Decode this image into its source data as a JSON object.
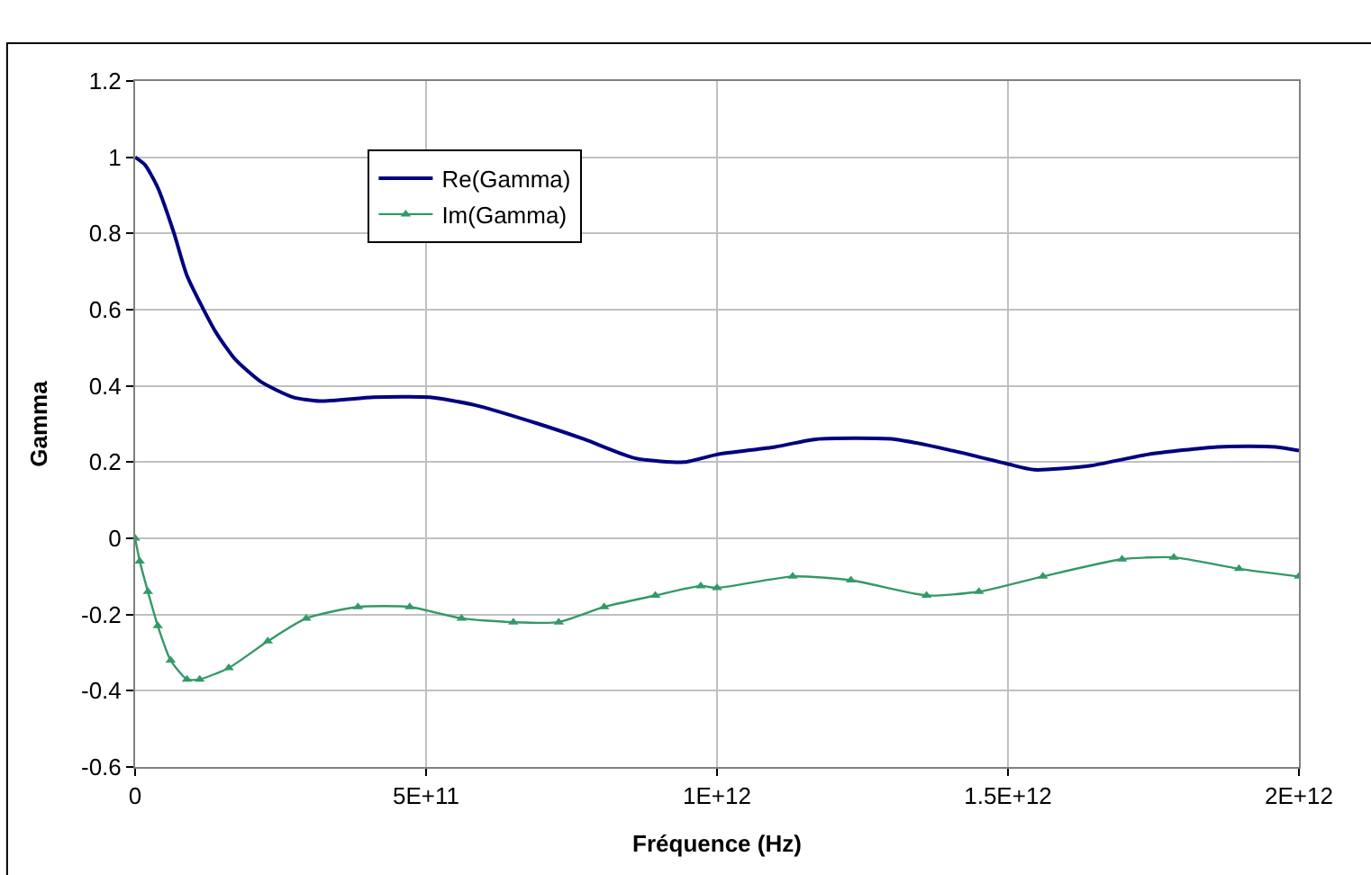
{
  "chart_data": {
    "type": "line",
    "xlabel": "Fréquence (Hz)",
    "ylabel": "Gamma",
    "xlim": [
      0,
      2000000000000.0
    ],
    "xticks": [
      {
        "value": 0,
        "label": "0"
      },
      {
        "value": 500000000000.0,
        "label": "5E+11"
      },
      {
        "value": 1000000000000.0,
        "label": "1E+12"
      },
      {
        "value": 1500000000000.0,
        "label": "1.5E+12"
      },
      {
        "value": 2000000000000.0,
        "label": "2E+12"
      }
    ],
    "ylim": [
      -0.6,
      1.2
    ],
    "yticks": [
      -0.6,
      -0.4,
      -0.2,
      0,
      0.2,
      0.4,
      0.6,
      0.8,
      1,
      1.2
    ],
    "grid": true,
    "legend": "top left",
    "series": [
      {
        "name": "Re(Gamma)",
        "color": "#000080",
        "marker": "none",
        "x": [
          0,
          17000000000.0,
          39000000000.0,
          67000000000.0,
          89000000000.0,
          139000000000.0,
          172000000000.0,
          217000000000.0,
          272000000000.0,
          317000000000.0,
          410000000000.0,
          506000000000.0,
          583000000000.0,
          694000000000.0,
          772000000000.0,
          860000000000.0,
          944000000000.0,
          1000000000000.0,
          1100000000000.0,
          1170000000000.0,
          1305000000000.0,
          1405000000000.0,
          1500000000000.0,
          1545000000000.0,
          1640000000000.0,
          1740000000000.0,
          1860000000000.0,
          1960000000000.0,
          2000000000000.0
        ],
        "values": [
          1.0,
          0.98,
          0.92,
          0.8,
          0.69,
          0.54,
          0.47,
          0.41,
          0.37,
          0.36,
          0.37,
          0.37,
          0.35,
          0.3,
          0.26,
          0.21,
          0.2,
          0.22,
          0.24,
          0.26,
          0.26,
          0.23,
          0.195,
          0.18,
          0.19,
          0.22,
          0.24,
          0.24,
          0.23
        ]
      },
      {
        "name": "Im(Gamma)",
        "color": "#339966",
        "marker": "triangle",
        "x": [
          0,
          8000000000.0,
          22000000000.0,
          39000000000.0,
          61000000000.0,
          89000000000.0,
          111000000000.0,
          161000000000.0,
          228000000000.0,
          294000000000.0,
          383000000000.0,
          472000000000.0,
          561000000000.0,
          650000000000.0,
          728000000000.0,
          806000000000.0,
          894000000000.0,
          972000000000.0,
          1000000000000.0,
          1130000000000.0,
          1230000000000.0,
          1360000000000.0,
          1450000000000.0,
          1560000000000.0,
          1696000000000.0,
          1785000000000.0,
          1897000000000.0,
          2000000000000.0
        ],
        "values": [
          0,
          -0.06,
          -0.14,
          -0.23,
          -0.32,
          -0.37,
          -0.37,
          -0.34,
          -0.27,
          -0.21,
          -0.18,
          -0.18,
          -0.21,
          -0.22,
          -0.22,
          -0.18,
          -0.15,
          -0.125,
          -0.13,
          -0.1,
          -0.11,
          -0.15,
          -0.14,
          -0.1,
          -0.055,
          -0.05,
          -0.08,
          -0.1
        ]
      }
    ]
  }
}
